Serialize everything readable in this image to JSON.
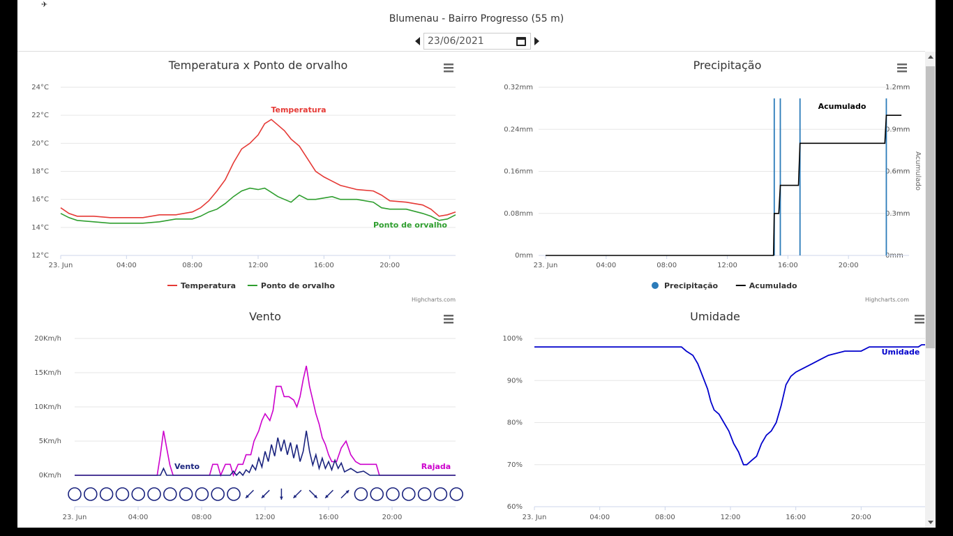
{
  "header": {
    "title": "Blumenau - Bairro Progresso (55 m)",
    "date": "23/06/2021",
    "corner_icon": "satellite-icon"
  },
  "colors": {
    "temperatura": "#e53935",
    "orvalho": "#2e9e2e",
    "precipitacao": "#2b7bb9",
    "acumulado": "#000000",
    "vento": "#1a237e",
    "rajada": "#cc00cc",
    "umidade": "#0000cc"
  },
  "credits": "Highcharts.com",
  "chart_data": [
    {
      "id": "temp",
      "type": "line",
      "title": "Temperatura x Ponto de orvalho",
      "xaxis": {
        "range_hours": [
          0,
          24
        ],
        "ticks": [
          "23. Jun",
          "04:00",
          "08:00",
          "12:00",
          "16:00",
          "20:00"
        ]
      },
      "yaxis": {
        "min": 12,
        "max": 24,
        "ticks": [
          "12°C",
          "14°C",
          "16°C",
          "18°C",
          "20°C",
          "22°C",
          "24°C"
        ]
      },
      "legend_position": "bottom-center",
      "grid": true,
      "series": [
        {
          "name": "Temperatura",
          "color_key": "temperatura",
          "points": [
            [
              0,
              15.4
            ],
            [
              0.5,
              15.0
            ],
            [
              1,
              14.8
            ],
            [
              2,
              14.8
            ],
            [
              3,
              14.7
            ],
            [
              4,
              14.7
            ],
            [
              5,
              14.7
            ],
            [
              6,
              14.9
            ],
            [
              7,
              14.9
            ],
            [
              8,
              15.1
            ],
            [
              8.5,
              15.4
            ],
            [
              9,
              15.9
            ],
            [
              9.5,
              16.6
            ],
            [
              10,
              17.4
            ],
            [
              10.5,
              18.6
            ],
            [
              11,
              19.6
            ],
            [
              11.5,
              20.0
            ],
            [
              12,
              20.6
            ],
            [
              12.4,
              21.4
            ],
            [
              12.8,
              21.7
            ],
            [
              13.2,
              21.3
            ],
            [
              13.6,
              20.9
            ],
            [
              14,
              20.3
            ],
            [
              14.5,
              19.8
            ],
            [
              15,
              18.9
            ],
            [
              15.5,
              18.0
            ],
            [
              16,
              17.6
            ],
            [
              16.5,
              17.3
            ],
            [
              17,
              17.0
            ],
            [
              18,
              16.7
            ],
            [
              19,
              16.6
            ],
            [
              19.5,
              16.3
            ],
            [
              20,
              15.9
            ],
            [
              21,
              15.8
            ],
            [
              22,
              15.6
            ],
            [
              22.5,
              15.3
            ],
            [
              23,
              14.8
            ],
            [
              23.5,
              14.9
            ],
            [
              24,
              15.1
            ]
          ]
        },
        {
          "name": "Ponto de orvalho",
          "color_key": "orvalho",
          "points": [
            [
              0,
              15.0
            ],
            [
              0.5,
              14.7
            ],
            [
              1,
              14.5
            ],
            [
              2,
              14.4
            ],
            [
              3,
              14.3
            ],
            [
              4,
              14.3
            ],
            [
              5,
              14.3
            ],
            [
              6,
              14.4
            ],
            [
              7,
              14.6
            ],
            [
              8,
              14.6
            ],
            [
              8.5,
              14.8
            ],
            [
              9,
              15.1
            ],
            [
              9.5,
              15.3
            ],
            [
              10,
              15.7
            ],
            [
              10.5,
              16.2
            ],
            [
              11,
              16.6
            ],
            [
              11.5,
              16.8
            ],
            [
              12,
              16.7
            ],
            [
              12.4,
              16.8
            ],
            [
              12.8,
              16.5
            ],
            [
              13.2,
              16.2
            ],
            [
              13.6,
              16.0
            ],
            [
              14,
              15.8
            ],
            [
              14.5,
              16.3
            ],
            [
              15,
              16.0
            ],
            [
              15.5,
              16.0
            ],
            [
              16,
              16.1
            ],
            [
              16.5,
              16.2
            ],
            [
              17,
              16.0
            ],
            [
              18,
              16.0
            ],
            [
              19,
              15.8
            ],
            [
              19.5,
              15.4
            ],
            [
              20,
              15.3
            ],
            [
              21,
              15.3
            ],
            [
              22,
              15.0
            ],
            [
              22.5,
              14.8
            ],
            [
              23,
              14.5
            ],
            [
              23.5,
              14.6
            ],
            [
              24,
              14.9
            ]
          ]
        }
      ]
    },
    {
      "id": "precip",
      "type": "line",
      "title": "Precipitação",
      "xaxis": {
        "range_hours": [
          0,
          24
        ],
        "ticks": [
          "23. Jun",
          "04:00",
          "08:00",
          "12:00",
          "16:00",
          "20:00"
        ]
      },
      "yaxis_left": {
        "min": 0,
        "max": 0.32,
        "ticks": [
          "0mm",
          "0.08mm",
          "0.16mm",
          "0.24mm",
          "0.32mm"
        ]
      },
      "yaxis_right": {
        "title": "Acumulado",
        "min": 0,
        "max": 1.2,
        "ticks": [
          "0mm",
          "0.3mm",
          "0.6mm",
          "0.9mm",
          "1.2mm"
        ]
      },
      "legend_position": "bottom-center",
      "grid": true,
      "series": [
        {
          "name": "Precipitação",
          "color_key": "precipitacao",
          "bars_hours": [
            15.1,
            15.5,
            16.8,
            22.5
          ]
        },
        {
          "name": "Acumulado",
          "color_key": "acumulado",
          "points": [
            [
              0,
              0
            ],
            [
              15.05,
              0
            ],
            [
              15.1,
              0.3
            ],
            [
              15.4,
              0.3
            ],
            [
              15.5,
              0.5
            ],
            [
              16.7,
              0.5
            ],
            [
              16.8,
              0.8
            ],
            [
              22.4,
              0.8
            ],
            [
              22.5,
              1.0
            ],
            [
              23.5,
              1.0
            ]
          ]
        }
      ]
    },
    {
      "id": "vento",
      "type": "line",
      "title": "Vento",
      "xaxis": {
        "range_hours": [
          0,
          24
        ],
        "ticks": [
          "23. Jun",
          "04:00",
          "08:00",
          "12:00",
          "16:00",
          "20:00"
        ]
      },
      "yaxis": {
        "min": 0,
        "max": 20,
        "ticks": [
          "0Km/h",
          "5Km/h",
          "10Km/h",
          "15Km/h",
          "20Km/h"
        ]
      },
      "grid": true,
      "wind_direction_icons": [
        "calm",
        "calm",
        "calm",
        "calm",
        "calm",
        "calm",
        "calm",
        "calm",
        "calm",
        "calm",
        "calm",
        "sw",
        "sw",
        "s",
        "sw",
        "se",
        "sw",
        "ne",
        "calm",
        "calm",
        "calm",
        "calm",
        "calm",
        "calm",
        "calm"
      ],
      "series": [
        {
          "name": "Vento",
          "color_key": "vento",
          "points": [
            [
              0,
              0
            ],
            [
              5.4,
              0
            ],
            [
              5.6,
              1
            ],
            [
              5.8,
              0
            ],
            [
              9.8,
              0
            ],
            [
              10,
              0.6
            ],
            [
              10.2,
              0
            ],
            [
              10.4,
              0.5
            ],
            [
              10.6,
              0
            ],
            [
              10.8,
              0.8
            ],
            [
              11,
              0.4
            ],
            [
              11.2,
              1.5
            ],
            [
              11.4,
              0.8
            ],
            [
              11.6,
              2.5
            ],
            [
              11.8,
              1.2
            ],
            [
              12,
              3.5
            ],
            [
              12.2,
              2.0
            ],
            [
              12.4,
              4.5
            ],
            [
              12.6,
              2.8
            ],
            [
              12.8,
              5.5
            ],
            [
              13,
              3.5
            ],
            [
              13.2,
              5.2
            ],
            [
              13.4,
              3.0
            ],
            [
              13.6,
              4.8
            ],
            [
              13.8,
              2.5
            ],
            [
              14,
              4.5
            ],
            [
              14.2,
              2.0
            ],
            [
              14.4,
              3.5
            ],
            [
              14.6,
              6.5
            ],
            [
              14.8,
              3.5
            ],
            [
              15,
              1.5
            ],
            [
              15.2,
              3.0
            ],
            [
              15.4,
              1.0
            ],
            [
              15.6,
              2.5
            ],
            [
              15.8,
              1.0
            ],
            [
              16,
              2.0
            ],
            [
              16.2,
              0.8
            ],
            [
              16.4,
              2.2
            ],
            [
              16.6,
              1.0
            ],
            [
              16.8,
              1.8
            ],
            [
              17,
              0.5
            ],
            [
              17.4,
              1.0
            ],
            [
              17.8,
              0.4
            ],
            [
              18.2,
              0.6
            ],
            [
              18.6,
              0
            ],
            [
              24,
              0
            ]
          ]
        },
        {
          "name": "Rajada",
          "color_key": "rajada",
          "points": [
            [
              0,
              0
            ],
            [
              5.2,
              0
            ],
            [
              5.4,
              3
            ],
            [
              5.6,
              6.5
            ],
            [
              5.8,
              4
            ],
            [
              6,
              1.5
            ],
            [
              6.2,
              0
            ],
            [
              8.5,
              0
            ],
            [
              8.7,
              1.6
            ],
            [
              9,
              1.6
            ],
            [
              9.2,
              0
            ],
            [
              9.5,
              1.6
            ],
            [
              9.8,
              1.6
            ],
            [
              10,
              0
            ],
            [
              10.3,
              1.6
            ],
            [
              10.6,
              1.6
            ],
            [
              10.8,
              3.0
            ],
            [
              11.1,
              3.0
            ],
            [
              11.3,
              5.0
            ],
            [
              11.6,
              6.5
            ],
            [
              11.8,
              8.0
            ],
            [
              12,
              9.0
            ],
            [
              12.3,
              8.0
            ],
            [
              12.5,
              9.5
            ],
            [
              12.7,
              13.0
            ],
            [
              13.0,
              13.0
            ],
            [
              13.2,
              11.5
            ],
            [
              13.5,
              11.5
            ],
            [
              13.8,
              11.0
            ],
            [
              14.0,
              10.0
            ],
            [
              14.2,
              11.5
            ],
            [
              14.4,
              14.0
            ],
            [
              14.6,
              16.0
            ],
            [
              14.8,
              13.0
            ],
            [
              15.0,
              11.0
            ],
            [
              15.2,
              9.0
            ],
            [
              15.4,
              7.5
            ],
            [
              15.6,
              5.5
            ],
            [
              15.8,
              4.5
            ],
            [
              16.0,
              3.0
            ],
            [
              16.2,
              2.0
            ],
            [
              16.5,
              2.0
            ],
            [
              16.8,
              4.0
            ],
            [
              17.1,
              5.0
            ],
            [
              17.4,
              3.0
            ],
            [
              17.7,
              2.0
            ],
            [
              18.0,
              1.6
            ],
            [
              18.5,
              1.6
            ],
            [
              19.0,
              1.6
            ],
            [
              19.2,
              0
            ],
            [
              24,
              0
            ]
          ]
        }
      ]
    },
    {
      "id": "umidade",
      "type": "line",
      "title": "Umidade",
      "xaxis": {
        "range_hours": [
          0,
          24
        ],
        "ticks": [
          "23. Jun",
          "04:00",
          "08:00",
          "12:00",
          "16:00",
          "20:00"
        ]
      },
      "yaxis": {
        "min": 60,
        "max": 100,
        "ticks": [
          "60%",
          "70%",
          "80%",
          "90%",
          "100%"
        ]
      },
      "grid": true,
      "series": [
        {
          "name": "Umidade",
          "color_key": "umidade",
          "points": [
            [
              0,
              98
            ],
            [
              9,
              98
            ],
            [
              9.3,
              97
            ],
            [
              9.7,
              96
            ],
            [
              10,
              94
            ],
            [
              10.3,
              91
            ],
            [
              10.6,
              88
            ],
            [
              10.8,
              85
            ],
            [
              11,
              83
            ],
            [
              11.3,
              82
            ],
            [
              11.6,
              80
            ],
            [
              11.9,
              78
            ],
            [
              12.2,
              75
            ],
            [
              12.5,
              73
            ],
            [
              12.8,
              70
            ],
            [
              13.0,
              70
            ],
            [
              13.3,
              71
            ],
            [
              13.6,
              72
            ],
            [
              13.9,
              75
            ],
            [
              14.2,
              77
            ],
            [
              14.5,
              78
            ],
            [
              14.8,
              80
            ],
            [
              15.1,
              84
            ],
            [
              15.4,
              89
            ],
            [
              15.7,
              91
            ],
            [
              16.0,
              92
            ],
            [
              16.5,
              93
            ],
            [
              17.0,
              94
            ],
            [
              17.5,
              95
            ],
            [
              18.0,
              96
            ],
            [
              19.0,
              97
            ],
            [
              20.0,
              97
            ],
            [
              20.5,
              98
            ],
            [
              23.5,
              98
            ],
            [
              23.7,
              98.5
            ],
            [
              24,
              98.5
            ]
          ]
        }
      ]
    }
  ]
}
